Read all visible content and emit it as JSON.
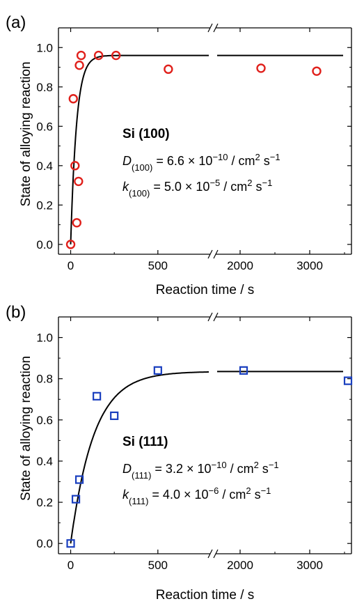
{
  "chart_data": [
    {
      "panel_label": "(a)",
      "type": "scatter",
      "xlabel": "Reaction time / s",
      "ylabel": "State of alloying reaction",
      "x_break": {
        "left_range": [
          -70,
          800
        ],
        "right_range": [
          1650,
          3600
        ]
      },
      "xticks": [
        0,
        500,
        2000,
        3000
      ],
      "ylim": [
        -0.05,
        1.1
      ],
      "yticks": [
        "0.0",
        "0.2",
        "0.4",
        "0.6",
        "0.8",
        "1.0"
      ],
      "marker": "circle",
      "marker_color": "#e0201b",
      "points": [
        [
          0,
          0.0
        ],
        [
          15,
          0.74
        ],
        [
          25,
          0.4
        ],
        [
          35,
          0.11
        ],
        [
          45,
          0.32
        ],
        [
          50,
          0.91
        ],
        [
          60,
          0.96
        ],
        [
          160,
          0.96
        ],
        [
          260,
          0.96
        ],
        [
          560,
          0.89
        ],
        [
          2300,
          0.895
        ],
        [
          3100,
          0.88
        ]
      ],
      "fit": {
        "plateau": 0.96,
        "rate": 0.03
      },
      "annotation": {
        "title": "Si (100)",
        "d_label": "D",
        "d_sub": "(100)",
        "d_value": " = 6.6 × 10",
        "d_exp": "−10",
        "d_unit": " / cm",
        "d_unit_exp": "2",
        "d_unit_tail": " s",
        "d_unit_tail_exp": "−1",
        "k_label": "k",
        "k_sub": "(100)",
        "k_value": " = 5.0 × 10",
        "k_exp": "−5",
        "k_unit": " / cm",
        "k_unit_exp": "2",
        "k_unit_tail": " s",
        "k_unit_tail_exp": "−1"
      }
    },
    {
      "panel_label": "(b)",
      "type": "scatter",
      "xlabel": "Reaction time / s",
      "ylabel": "State of alloying reaction",
      "x_break": {
        "left_range": [
          -70,
          800
        ],
        "right_range": [
          1650,
          3600
        ]
      },
      "xticks": [
        0,
        500,
        2000,
        3000
      ],
      "ylim": [
        -0.05,
        1.1
      ],
      "yticks": [
        "0.0",
        "0.2",
        "0.4",
        "0.6",
        "0.8",
        "1.0"
      ],
      "marker": "square",
      "marker_color": "#1a3fbf",
      "points": [
        [
          0,
          0.0
        ],
        [
          30,
          0.215
        ],
        [
          50,
          0.31
        ],
        [
          150,
          0.715
        ],
        [
          250,
          0.62
        ],
        [
          500,
          0.84
        ],
        [
          2050,
          0.84
        ],
        [
          3550,
          0.79
        ]
      ],
      "fit": {
        "plateau": 0.835,
        "rate": 0.0075
      },
      "annotation": {
        "title": "Si (111)",
        "d_label": "D",
        "d_sub": "(111)",
        "d_value": " = 3.2 × 10",
        "d_exp": "−10",
        "d_unit": " / cm",
        "d_unit_exp": "2",
        "d_unit_tail": " s",
        "d_unit_tail_exp": "−1",
        "k_label": "k",
        "k_sub": "(111)",
        "k_value": " = 4.0 × 10",
        "k_exp": "−6",
        "k_unit": " / cm",
        "k_unit_exp": "2",
        "k_unit_tail": " s",
        "k_unit_tail_exp": "−1"
      }
    }
  ]
}
